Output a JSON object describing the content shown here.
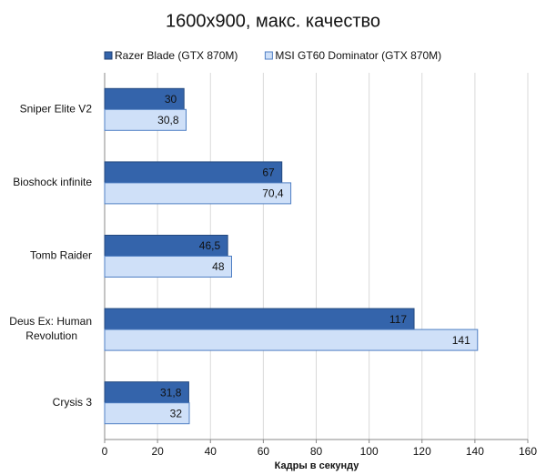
{
  "chart_data": {
    "type": "hbar",
    "title": "1600x900, макс. качество",
    "x_label": "Кадры  в секунду",
    "categories": [
      "Sniper Elite V2",
      "Bioshock infinite",
      "Tomb Raider",
      "Deus Ex: Human Revolution",
      "Crysis 3"
    ],
    "series": [
      {
        "name": "Razer Blade (GTX 870M)",
        "color": "#3464ab",
        "values": [
          30,
          67,
          46.5,
          117,
          31.8
        ],
        "value_labels": [
          "30",
          "67",
          "46,5",
          "117",
          "31,8"
        ]
      },
      {
        "name": "MSI GT60 Dominator (GTX 870M)",
        "color": "#cfe0f8",
        "values": [
          30.8,
          70.4,
          48,
          141,
          32
        ],
        "value_labels": [
          "30,8",
          "70,4",
          "48",
          "141",
          "32"
        ]
      }
    ],
    "xlim": [
      0,
      160
    ],
    "xticks": [
      0,
      20,
      40,
      60,
      80,
      100,
      120,
      140,
      160
    ],
    "grid": true,
    "legend": "top"
  }
}
